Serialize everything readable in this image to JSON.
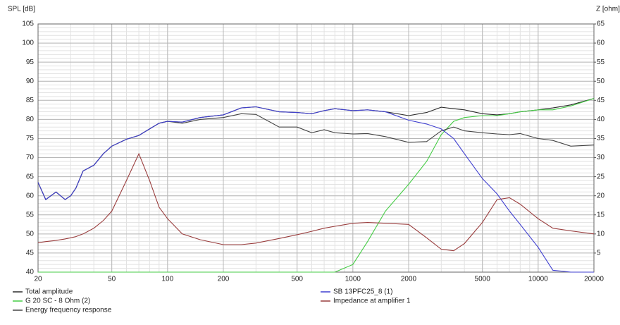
{
  "chart_data": {
    "type": "line",
    "y_label": "SPL [dB]",
    "y2_label": "Z [ohm]",
    "x_log": true,
    "grid": true,
    "minor_grid": true,
    "xlim": [
      20,
      20000
    ],
    "ylim": [
      40,
      105
    ],
    "y2lim": [
      0,
      65
    ],
    "xticks": [
      20,
      50,
      100,
      200,
      500,
      1000,
      2000,
      5000,
      10000,
      20000
    ],
    "yticks": [
      40,
      45,
      50,
      55,
      60,
      65,
      70,
      75,
      80,
      85,
      90,
      95,
      100,
      105
    ],
    "y2ticks": [
      5,
      10,
      15,
      20,
      25,
      30,
      35,
      40,
      45,
      50,
      55,
      60,
      65
    ],
    "x": [
      20,
      22,
      25,
      28,
      30,
      32,
      35,
      40,
      45,
      50,
      60,
      70,
      80,
      90,
      100,
      120,
      150,
      200,
      250,
      300,
      400,
      500,
      600,
      700,
      800,
      1000,
      1200,
      1500,
      2000,
      2500,
      3000,
      3500,
      4000,
      5000,
      6000,
      7000,
      8000,
      10000,
      12000,
      15000,
      20000
    ],
    "series": [
      {
        "name": "Total amplitude",
        "color": "#2b2b2b",
        "values": [
          63.5,
          59,
          61,
          59,
          60,
          62,
          66.5,
          68,
          71,
          73,
          74.8,
          75.8,
          77.5,
          79,
          79.5,
          79.3,
          80.5,
          81.2,
          83,
          83.3,
          82,
          81.8,
          81.5,
          82.3,
          82.8,
          82.3,
          82.5,
          82,
          81,
          81.8,
          83.2,
          82.8,
          82.5,
          81.5,
          81.2,
          81.5,
          82,
          82.5,
          83,
          83.8,
          85.5
        ]
      },
      {
        "name": "G 20 SC - 8 Ohm (2)",
        "color": "#44cc44",
        "values": [
          40,
          40,
          40,
          40,
          40,
          40,
          40,
          40,
          40,
          40,
          40,
          40,
          40,
          40,
          40,
          40,
          40,
          40,
          40,
          40,
          40,
          40,
          40,
          40,
          40,
          42,
          48,
          56,
          63,
          69,
          76,
          79.5,
          80.5,
          81,
          81,
          81.5,
          82,
          82.5,
          82.5,
          83.5,
          85.5
        ]
      },
      {
        "name": "Energy frequency response",
        "color": "#444444",
        "values": [
          63.5,
          59,
          61,
          59,
          60,
          62,
          66.5,
          68,
          71,
          73,
          74.8,
          75.8,
          77.5,
          79,
          79.5,
          79,
          80,
          80.5,
          81.5,
          81.3,
          78,
          78,
          76.5,
          77.3,
          76.5,
          76.2,
          76.3,
          75.5,
          74,
          74.2,
          77,
          78,
          77,
          76.5,
          76.2,
          76,
          76.3,
          75,
          74.5,
          73,
          73.3
        ]
      },
      {
        "name": "SB 13PFC25_8 (1)",
        "color": "#3f3fd0",
        "values": [
          63.5,
          59,
          61,
          59,
          60,
          62,
          66.5,
          68,
          71,
          73,
          74.8,
          75.8,
          77.5,
          79,
          79.5,
          79.3,
          80.5,
          81.2,
          83,
          83.3,
          82,
          81.8,
          81.5,
          82.3,
          82.8,
          82.3,
          82.5,
          82,
          79.8,
          78.8,
          77.5,
          75,
          71,
          64.5,
          60.5,
          56,
          52.5,
          46.5,
          40.5,
          40,
          40
        ]
      },
      {
        "name": "Impedance at amplifier 1",
        "color": "#993c3c",
        "axis": "y2",
        "values": [
          7.7,
          8,
          8.3,
          8.7,
          9,
          9.3,
          10,
          11.5,
          13.5,
          16,
          24,
          31,
          24,
          17,
          14,
          10,
          8.5,
          7.2,
          7.2,
          7.6,
          8.8,
          9.8,
          10.7,
          11.5,
          12,
          12.8,
          13,
          12.8,
          12.5,
          9,
          6,
          5.6,
          7.5,
          13,
          19,
          19.5,
          17.8,
          14,
          11.5,
          10.8,
          10
        ]
      }
    ]
  }
}
